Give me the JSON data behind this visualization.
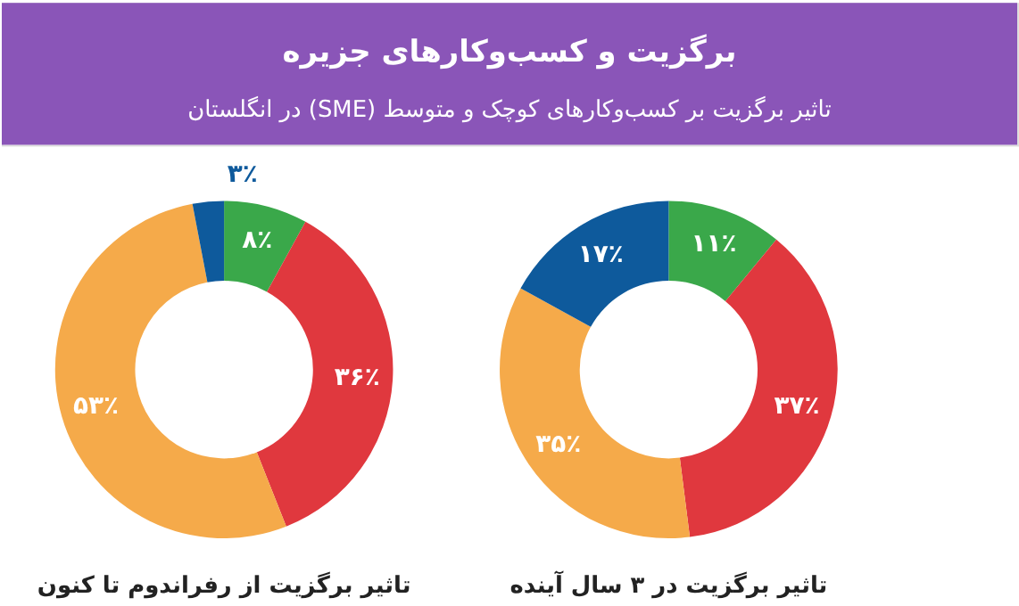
{
  "chart_data": [
    {
      "type": "donut",
      "title": "برگزیت و کسب‌وکارهای جزیره",
      "subtitle": "تاثیر برگزیت بر کسب‌وکارهای کوچک و متوسط (SME) در انگلستان",
      "xlabel": "تاثیر برگزیت از رفراندوم تا کنون",
      "categories": [
        null,
        null,
        null,
        null
      ],
      "values": [
        8,
        36,
        53,
        3
      ],
      "colors": [
        "#3aa84a",
        "#e0383e",
        "#f5aa4a",
        "#0e5a9c"
      ],
      "value_labels": [
        "۸٪",
        "۳۶٪",
        "۵۳٪",
        "۳٪"
      ],
      "legend": false
    },
    {
      "type": "donut",
      "xlabel": "تاثیر برگزیت در ۳ سال آینده",
      "categories": [
        null,
        null,
        null,
        null
      ],
      "values": [
        11,
        37,
        35,
        17
      ],
      "colors": [
        "#3aa84a",
        "#e0383e",
        "#f5aa4a",
        "#0e5a9c"
      ],
      "value_labels": [
        "۱۱٪",
        "۳۷٪",
        "۳۵٪",
        "۱۷٪"
      ],
      "legend": false
    }
  ]
}
